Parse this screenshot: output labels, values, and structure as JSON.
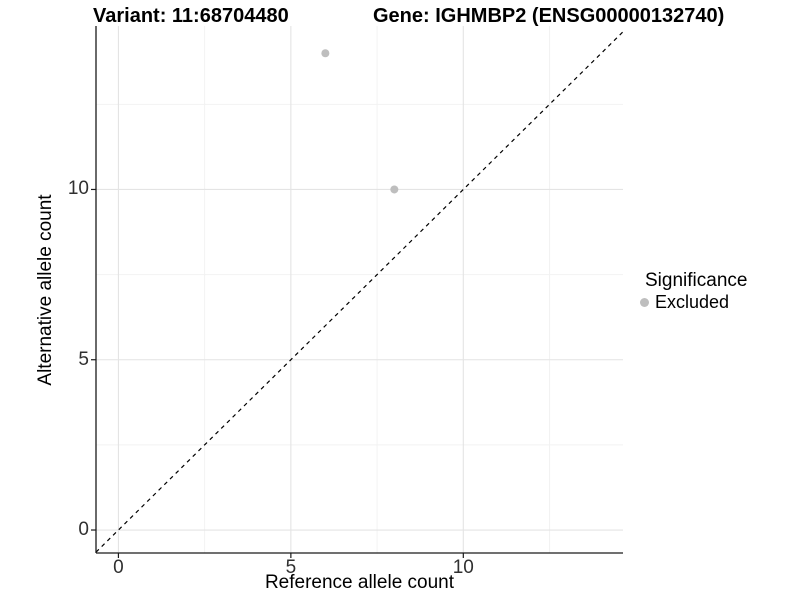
{
  "chart_data": {
    "type": "scatter",
    "title_left": "Variant: 11:68704480",
    "title_right": "Gene: IGHMBP2 (ENSG00000132740)",
    "xlabel": "Reference allele count",
    "ylabel": "Alternative allele count",
    "xlim": [
      -0.65,
      14.63
    ],
    "ylim": [
      -0.675,
      14.8
    ],
    "x_major_ticks": [
      0,
      5,
      10
    ],
    "y_major_ticks": [
      0,
      5,
      10
    ],
    "x_minor_ticks": [
      2.5,
      7.5,
      12.5
    ],
    "y_minor_ticks": [
      2.5,
      7.5,
      12.5
    ],
    "grid": true,
    "points": [
      {
        "x": 6,
        "y": 14,
        "significance": "Excluded"
      },
      {
        "x": 8,
        "y": 10,
        "significance": "Excluded"
      }
    ],
    "reference_line": {
      "type": "identity",
      "slope": 1,
      "intercept": 0,
      "style": "dashed"
    },
    "legend": {
      "title": "Significance",
      "position": "right",
      "items": [
        {
          "label": "Excluded",
          "color": "#BEBEBE"
        }
      ]
    },
    "colors": {
      "point": "#BEBEBE",
      "grid_major": "#E4E4E4",
      "grid_minor": "#F2F2F2",
      "axis_line": "#1A1A1A",
      "tick_mark": "#1A1A1A",
      "reference_line": "#000000",
      "tick_label": "#303030",
      "background": "#FFFFFF"
    }
  }
}
